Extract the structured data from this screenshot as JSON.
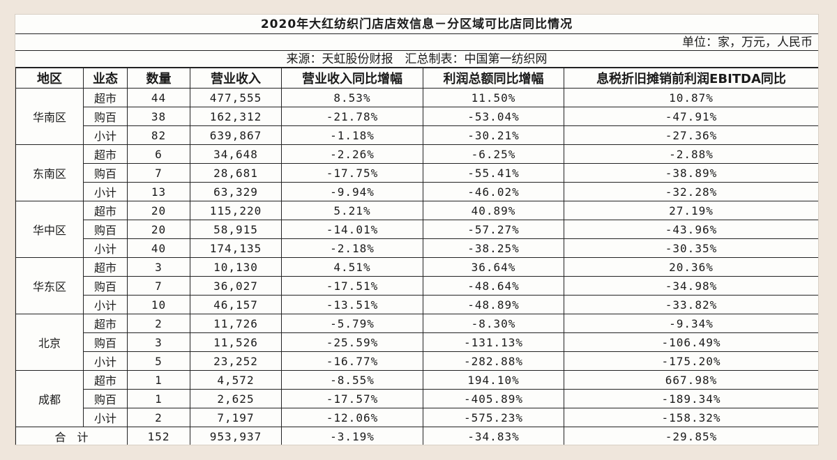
{
  "title": "2020年大红纺织门店店效信息－分区域可比店同比情况",
  "unit": "单位：家，万元，人民币",
  "source": "来源：天虹股份财报　汇总制表：中国第一纺织网",
  "columns": [
    "地区",
    "业态",
    "数量",
    "营业收入",
    "营业收入同比增幅",
    "利润总额同比增幅",
    "息税折旧摊销前利润EBITDA同比"
  ],
  "regions": [
    {
      "name": "华南区",
      "rows": [
        [
          "超市",
          "44",
          "477,555",
          "8.53%",
          "11.50%",
          "10.87%"
        ],
        [
          "购百",
          "38",
          "162,312",
          "-21.78%",
          "-53.04%",
          "-47.91%"
        ],
        [
          "小计",
          "82",
          "639,867",
          "-1.18%",
          "-30.21%",
          "-27.36%"
        ]
      ]
    },
    {
      "name": "东南区",
      "rows": [
        [
          "超市",
          "6",
          "34,648",
          "-2.26%",
          "-6.25%",
          "-2.88%"
        ],
        [
          "购百",
          "7",
          "28,681",
          "-17.75%",
          "-55.41%",
          "-38.89%"
        ],
        [
          "小计",
          "13",
          "63,329",
          "-9.94%",
          "-46.02%",
          "-32.28%"
        ]
      ]
    },
    {
      "name": "华中区",
      "rows": [
        [
          "超市",
          "20",
          "115,220",
          "5.21%",
          "40.89%",
          "27.19%"
        ],
        [
          "购百",
          "20",
          "58,915",
          "-14.01%",
          "-57.27%",
          "-43.96%"
        ],
        [
          "小计",
          "40",
          "174,135",
          "-2.18%",
          "-38.25%",
          "-30.35%"
        ]
      ]
    },
    {
      "name": "华东区",
      "rows": [
        [
          "超市",
          "3",
          "10,130",
          "4.51%",
          "36.64%",
          "20.36%"
        ],
        [
          "购百",
          "7",
          "36,027",
          "-17.51%",
          "-48.64%",
          "-34.98%"
        ],
        [
          "小计",
          "10",
          "46,157",
          "-13.51%",
          "-48.89%",
          "-33.82%"
        ]
      ]
    },
    {
      "name": "北京",
      "rows": [
        [
          "超市",
          "2",
          "11,726",
          "-5.79%",
          "-8.30%",
          "-9.34%"
        ],
        [
          "购百",
          "3",
          "11,526",
          "-25.59%",
          "-131.13%",
          "-106.49%"
        ],
        [
          "小计",
          "5",
          "23,252",
          "-16.77%",
          "-282.88%",
          "-175.20%"
        ]
      ]
    },
    {
      "name": "成都",
      "rows": [
        [
          "超市",
          "1",
          "4,572",
          "-8.55%",
          "194.10%",
          "667.98%"
        ],
        [
          "购百",
          "1",
          "2,625",
          "-17.57%",
          "-405.89%",
          "-189.34%"
        ],
        [
          "小计",
          "2",
          "7,197",
          "-12.06%",
          "-575.23%",
          "-158.32%"
        ]
      ]
    }
  ],
  "total": {
    "label": "合　计",
    "values": [
      "152",
      "953,937",
      "-3.19%",
      "-34.83%",
      "-29.85%"
    ]
  }
}
